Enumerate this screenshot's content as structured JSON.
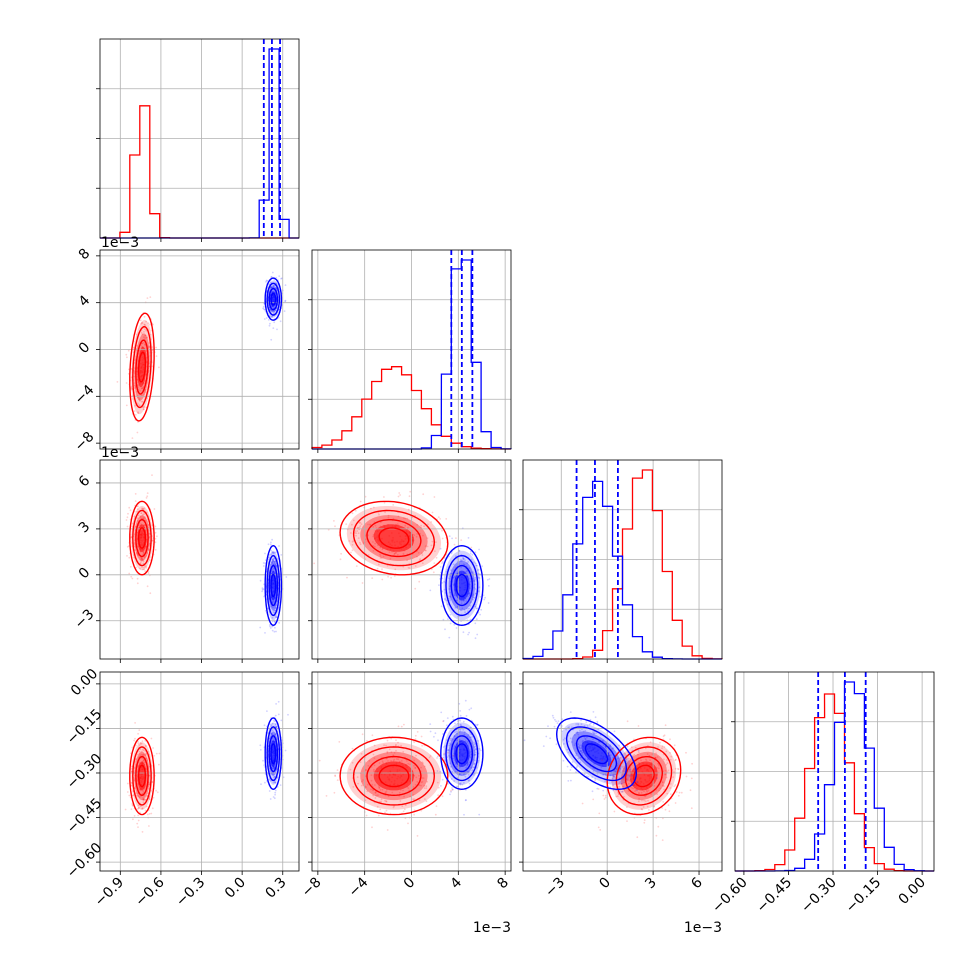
{
  "chart_data": {
    "type": "corner",
    "colors": {
      "red": "#ff0000",
      "blue": "#0000ff"
    },
    "series": [
      "red",
      "blue"
    ],
    "parameters": [
      {
        "index": 0,
        "range": [
          -1.05,
          0.42
        ],
        "ticks": [
          -0.9,
          -0.6,
          -0.3,
          0.0,
          0.3
        ],
        "tick_labels": [
          "−0.9",
          "−0.6",
          "−0.3",
          "0.0",
          "0.3"
        ],
        "offset_label": ""
      },
      {
        "index": 1,
        "range": [
          -0.0085,
          0.0085
        ],
        "ticks": [
          -0.008,
          -0.004,
          0.0,
          0.004,
          0.008
        ],
        "tick_labels": [
          "−8",
          "−4",
          "0",
          "4",
          "8"
        ],
        "offset_label": "1e−3"
      },
      {
        "index": 2,
        "range": [
          -0.0055,
          0.0075
        ],
        "ticks": [
          -0.003,
          0.0,
          0.003,
          0.006
        ],
        "tick_labels": [
          "−3",
          "0",
          "3",
          "6"
        ],
        "offset_label": "1e−3"
      },
      {
        "index": 3,
        "range": [
          -0.63,
          0.04
        ],
        "ticks": [
          -0.6,
          -0.45,
          -0.3,
          -0.15,
          0.0
        ],
        "tick_labels": [
          "−0.60",
          "−0.45",
          "−0.30",
          "−0.15",
          "0.00"
        ],
        "offset_label": ""
      }
    ],
    "red": {
      "mean": [
        -0.74,
        -0.0015,
        0.0024,
        -0.31
      ],
      "sd": [
        0.045,
        0.0023,
        0.0012,
        0.065
      ],
      "corr": {
        "0-1": 0.25,
        "0-2": 0.0,
        "0-3": 0.0,
        "1-2": -0.15,
        "1-3": 0.0,
        "2-3": 0.15
      }
    },
    "blue": {
      "mean": [
        0.23,
        0.0043,
        -0.0007,
        -0.235
      ],
      "sd": [
        0.03,
        0.0009,
        0.0013,
        0.06
      ],
      "corr": {
        "0-1": 0.0,
        "0-2": 0.0,
        "0-3": 0.0,
        "1-2": 0.0,
        "1-3": 0.0,
        "2-3": -0.55
      }
    },
    "quantile_lines_blue": [
      [
        0.16,
        0.22,
        0.28
      ],
      [
        0.0034,
        0.0043,
        0.0052
      ],
      [
        -0.002,
        -0.0008,
        0.0007
      ],
      [
        -0.35,
        -0.26,
        -0.19
      ]
    ],
    "grid": true
  }
}
